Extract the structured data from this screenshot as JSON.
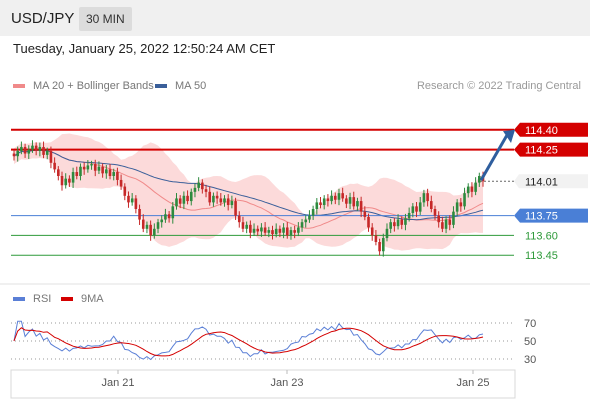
{
  "header": {
    "symbol": "USD/JPY",
    "timeframe": "30 MIN"
  },
  "timestamp": "Tuesday, January 25, 2022 12:50:24 AM CET",
  "copyright": "Research © 2022 Trading Central",
  "colors": {
    "bull": "#2d8a3e",
    "bear": "#c62828",
    "band": "#fbd3d3",
    "ma20": "#f08a8a",
    "ma50": "#3a5f9a",
    "resistance": "#d40000",
    "pivot": "#4a7fd6",
    "support": "#2e9a3a",
    "rsi": "#5a7fd6",
    "rsi_ma": "#d40000"
  },
  "chart_data": [
    {
      "type": "candlestick",
      "legend": [
        {
          "label": "MA 20 + Bollinger Bands",
          "color": "#f08a8a"
        },
        {
          "label": "MA 50",
          "color": "#3a5f9a"
        }
      ],
      "x_labels": [
        "Jan 21",
        "Jan 23",
        "Jan 25"
      ],
      "ylim": [
        113.3,
        114.55
      ],
      "levels": [
        {
          "value": 114.4,
          "label": "114.40",
          "kind": "resistance"
        },
        {
          "value": 114.25,
          "label": "114.25",
          "kind": "resistance"
        },
        {
          "value": 114.01,
          "label": "114.01",
          "kind": "last"
        },
        {
          "value": 113.75,
          "label": "113.75",
          "kind": "pivot"
        },
        {
          "value": 113.6,
          "label": "113.60",
          "kind": "support"
        },
        {
          "value": 113.45,
          "label": "113.45",
          "kind": "support"
        }
      ],
      "close": [
        114.2,
        114.24,
        114.27,
        114.22,
        114.25,
        114.28,
        114.24,
        114.27,
        114.21,
        114.24,
        114.15,
        114.1,
        114.05,
        113.98,
        114.03,
        114.0,
        114.08,
        114.05,
        114.12,
        114.1,
        114.13,
        114.14,
        114.09,
        114.12,
        114.07,
        114.1,
        114.05,
        114.08,
        114.02,
        113.97,
        113.9,
        113.85,
        113.88,
        113.8,
        113.72,
        113.65,
        113.68,
        113.6,
        113.65,
        113.7,
        113.72,
        113.76,
        113.73,
        113.82,
        113.88,
        113.84,
        113.9,
        113.86,
        113.93,
        113.96,
        114.0,
        113.95,
        113.93,
        113.85,
        113.9,
        113.88,
        113.85,
        113.88,
        113.83,
        113.86,
        113.75,
        113.7,
        113.65,
        113.68,
        113.62,
        113.65,
        113.63,
        113.66,
        113.62,
        113.64,
        113.61,
        113.65,
        113.62,
        113.66,
        113.6,
        113.64,
        113.62,
        113.66,
        113.7,
        113.72,
        113.75,
        113.8,
        113.85,
        113.83,
        113.88,
        113.86,
        113.9,
        113.87,
        113.92,
        113.88,
        113.84,
        113.89,
        113.82,
        113.86,
        113.78,
        113.74,
        113.66,
        113.6,
        113.55,
        113.48,
        113.58,
        113.65,
        113.7,
        113.67,
        113.72,
        113.68,
        113.73,
        113.77,
        113.82,
        113.78,
        113.85,
        113.92,
        113.86,
        113.8,
        113.75,
        113.7,
        113.65,
        113.72,
        113.68,
        113.78,
        113.85,
        113.82,
        113.92,
        113.97,
        113.93,
        114.0,
        114.05,
        114.01
      ],
      "rsi_ylim": [
        20,
        80
      ],
      "rsi_ticks": [
        70,
        50,
        30
      ],
      "rsi_legend": [
        {
          "label": "RSI",
          "color": "#5a7fd6"
        },
        {
          "label": "9MA",
          "color": "#d40000"
        }
      ]
    }
  ]
}
